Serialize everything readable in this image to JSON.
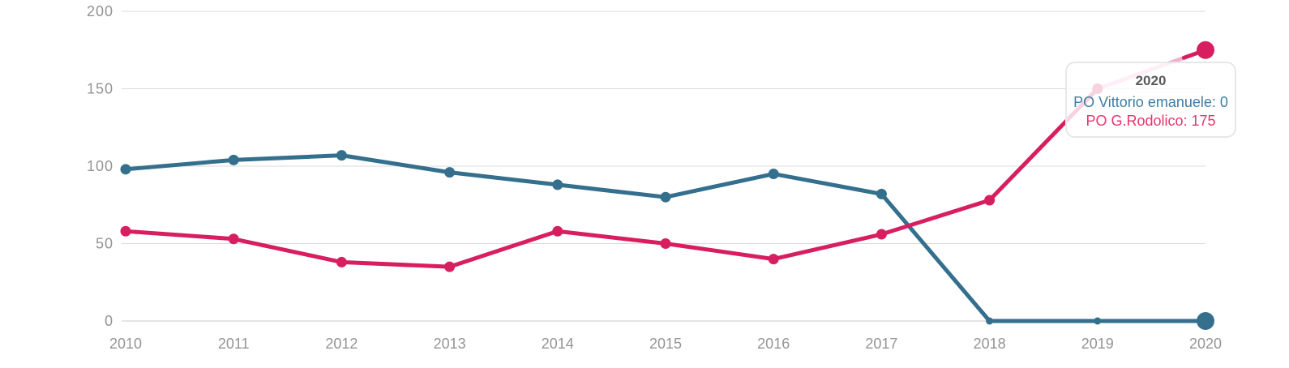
{
  "page": {
    "background_color": "#ffffff"
  },
  "chart_data": {
    "type": "line",
    "title": "",
    "xlabel": "",
    "ylabel": "",
    "x": [
      "2010",
      "2011",
      "2012",
      "2013",
      "2014",
      "2015",
      "2016",
      "2017",
      "2018",
      "2019",
      "2020"
    ],
    "series": [
      {
        "name": "PO Vittorio emanuele",
        "color": "#346F8D",
        "values": [
          98,
          104,
          107,
          96,
          88,
          80,
          95,
          82,
          0,
          0,
          0
        ]
      },
      {
        "name": "PO G.Rodolico",
        "color": "#D71F5F",
        "values": [
          58,
          53,
          38,
          35,
          58,
          50,
          40,
          56,
          78,
          150,
          175
        ]
      }
    ],
    "ylim": [
      0,
      200
    ],
    "yticks": [
      "0",
      "50",
      "100",
      "150",
      "200"
    ],
    "grid": true,
    "legend": "none",
    "highlighted_x": "2020",
    "axis_text_color": "#949494",
    "gridline_color": "#DBDBDB",
    "faded_segment_color": "#F3B0CA"
  },
  "tooltip": {
    "title": "2020",
    "title_color": "#58595B",
    "entries": [
      {
        "text": "PO Vittorio emanuele: 0",
        "color": "#3E7CA4"
      },
      {
        "text": "PO G.Rodolico: 175",
        "color": "#E7356D"
      }
    ]
  }
}
